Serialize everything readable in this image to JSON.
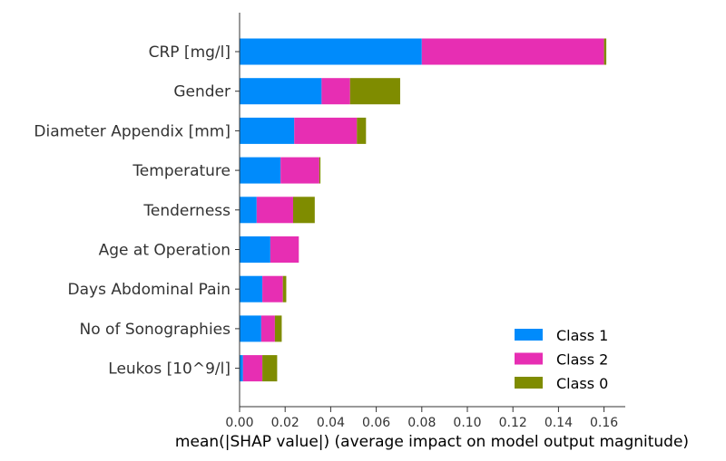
{
  "chart_data": {
    "type": "bar",
    "orientation": "horizontal",
    "stacked": true,
    "categories": [
      "CRP [mg/l]",
      "Gender",
      "Diameter Appendix [mm]",
      "Temperature",
      "Tenderness",
      "Age at Operation",
      "Days Abdominal Pain",
      "No of Sonographies",
      "Leukos [10^9/l]"
    ],
    "series": [
      {
        "name": "Class 1",
        "color": "#008bfb",
        "values": [
          0.08,
          0.036,
          0.024,
          0.018,
          0.0075,
          0.0135,
          0.01,
          0.0095,
          0.0015
        ]
      },
      {
        "name": "Class 2",
        "color": "#e72eb3",
        "values": [
          0.08,
          0.0125,
          0.0275,
          0.017,
          0.016,
          0.0125,
          0.009,
          0.006,
          0.0085
        ]
      },
      {
        "name": "Class 0",
        "color": "#7f8c00",
        "values": [
          0.001,
          0.022,
          0.004,
          0.0005,
          0.0095,
          0.0,
          0.0015,
          0.003,
          0.0065
        ]
      }
    ],
    "xlim": [
      0,
      0.17
    ],
    "xticks": [
      "0.00",
      "0.02",
      "0.04",
      "0.06",
      "0.08",
      "0.10",
      "0.12",
      "0.14",
      "0.16"
    ],
    "xlabel": "mean(|SHAP value|) (average impact on model output magnitude)",
    "ylabel": "",
    "title": "",
    "legend": {
      "position": "bottom-right",
      "order": [
        "Class 1",
        "Class 2",
        "Class 0"
      ]
    },
    "grid": false
  }
}
